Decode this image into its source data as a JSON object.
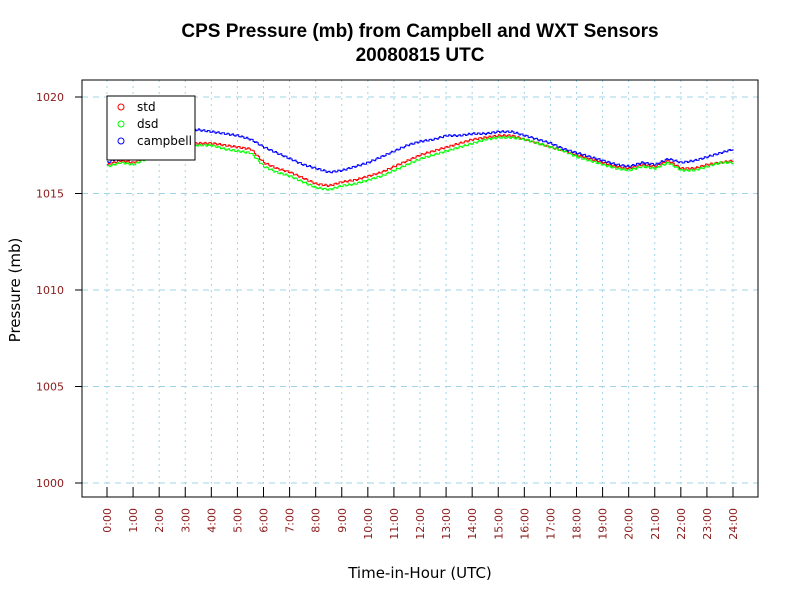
{
  "chart_data": {
    "type": "line",
    "title": "CPS Pressure (mb) from Campbell and WXT Sensors",
    "subtitle": "20080815  UTC",
    "xlabel": "Time-in-Hour (UTC)",
    "ylabel": "Pressure (mb)",
    "xlim": [
      0,
      24
    ],
    "ylim": [
      1000,
      1020
    ],
    "x_ticks": [
      "0:00",
      "1:00",
      "2:00",
      "3:00",
      "4:00",
      "5:00",
      "6:00",
      "7:00",
      "8:00",
      "9:00",
      "10:00",
      "11:00",
      "12:00",
      "13:00",
      "14:00",
      "15:00",
      "16:00",
      "17:00",
      "18:00",
      "19:00",
      "20:00",
      "21:00",
      "22:00",
      "23:00",
      "24:00"
    ],
    "y_ticks": [
      "1000",
      "1005",
      "1010",
      "1015",
      "1020"
    ],
    "grid": true,
    "legend_position": "top-left",
    "x": [
      0,
      0.5,
      1,
      1.5,
      2,
      2.5,
      3,
      3.5,
      4,
      4.5,
      5,
      5.5,
      6,
      6.5,
      7,
      7.5,
      8,
      8.5,
      9,
      9.5,
      10,
      10.5,
      11,
      11.5,
      12,
      12.5,
      13,
      13.5,
      14,
      14.5,
      15,
      15.5,
      16,
      16.5,
      17,
      17.5,
      18,
      18.5,
      19,
      19.5,
      20,
      20.5,
      21,
      21.5,
      22,
      22.5,
      23,
      23.5,
      24
    ],
    "series": [
      {
        "name": "std",
        "color": "#ff0000",
        "values": [
          1016.5,
          1016.7,
          1016.6,
          1016.9,
          1017.2,
          1017.4,
          1017.6,
          1017.6,
          1017.6,
          1017.5,
          1017.4,
          1017.3,
          1016.6,
          1016.3,
          1016.1,
          1015.8,
          1015.5,
          1015.4,
          1015.6,
          1015.7,
          1015.9,
          1016.1,
          1016.4,
          1016.7,
          1017.0,
          1017.2,
          1017.4,
          1017.6,
          1017.8,
          1017.9,
          1018.0,
          1018.0,
          1017.8,
          1017.6,
          1017.4,
          1017.2,
          1017.0,
          1016.8,
          1016.6,
          1016.4,
          1016.3,
          1016.5,
          1016.4,
          1016.7,
          1016.3,
          1016.3,
          1016.5,
          1016.6,
          1016.7
        ]
      },
      {
        "name": "dsd",
        "color": "#00ff00",
        "values": [
          1016.4,
          1016.6,
          1016.5,
          1016.8,
          1017.1,
          1017.3,
          1017.5,
          1017.5,
          1017.5,
          1017.3,
          1017.2,
          1017.1,
          1016.4,
          1016.1,
          1015.9,
          1015.6,
          1015.3,
          1015.2,
          1015.4,
          1015.5,
          1015.7,
          1015.9,
          1016.2,
          1016.5,
          1016.8,
          1017.0,
          1017.2,
          1017.4,
          1017.6,
          1017.8,
          1017.9,
          1017.9,
          1017.8,
          1017.6,
          1017.4,
          1017.2,
          1016.9,
          1016.7,
          1016.5,
          1016.3,
          1016.2,
          1016.4,
          1016.3,
          1016.6,
          1016.2,
          1016.2,
          1016.4,
          1016.6,
          1016.6
        ]
      },
      {
        "name": "campbell",
        "color": "#0000ff",
        "values": [
          1016.6,
          1016.9,
          1017.0,
          1017.6,
          1018.0,
          1018.2,
          1018.3,
          1018.3,
          1018.2,
          1018.1,
          1018.0,
          1017.8,
          1017.4,
          1017.1,
          1016.8,
          1016.5,
          1016.3,
          1016.1,
          1016.2,
          1016.4,
          1016.6,
          1016.9,
          1017.2,
          1017.5,
          1017.7,
          1017.8,
          1018.0,
          1018.0,
          1018.1,
          1018.1,
          1018.2,
          1018.2,
          1018.0,
          1017.8,
          1017.6,
          1017.3,
          1017.1,
          1016.9,
          1016.7,
          1016.5,
          1016.4,
          1016.6,
          1016.5,
          1016.8,
          1016.6,
          1016.7,
          1016.9,
          1017.1,
          1017.3
        ]
      }
    ]
  }
}
